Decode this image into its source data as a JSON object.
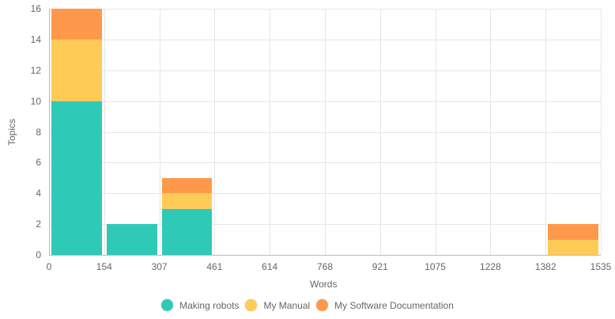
{
  "chart_data": {
    "type": "bar",
    "stacked": true,
    "title": "",
    "xlabel": "Words",
    "ylabel": "Topics",
    "ylim": [
      0,
      16
    ],
    "yticks": [
      "0",
      "2",
      "4",
      "6",
      "8",
      "10",
      "12",
      "14",
      "16"
    ],
    "xticks": [
      "0",
      "154",
      "307",
      "461",
      "614",
      "768",
      "921",
      "1075",
      "1228",
      "1382",
      "1535"
    ],
    "categories": [
      "0-154",
      "154-307",
      "307-461",
      "461-614",
      "614-768",
      "768-921",
      "921-1075",
      "1075-1228",
      "1228-1382",
      "1382-1535"
    ],
    "series": [
      {
        "name": "Making robots",
        "color": "#2ecab7",
        "values": [
          10,
          2,
          3,
          0,
          0,
          0,
          0,
          0,
          0,
          0
        ]
      },
      {
        "name": "My Manual",
        "color": "#fecb57",
        "values": [
          4,
          0,
          1,
          0,
          0,
          0,
          0,
          0,
          0,
          1
        ]
      },
      {
        "name": "My Software Documentation",
        "color": "#fe994c",
        "values": [
          2,
          0,
          1,
          0,
          0,
          0,
          0,
          0,
          0,
          1
        ]
      }
    ],
    "grid": true,
    "legend_position": "bottom"
  }
}
